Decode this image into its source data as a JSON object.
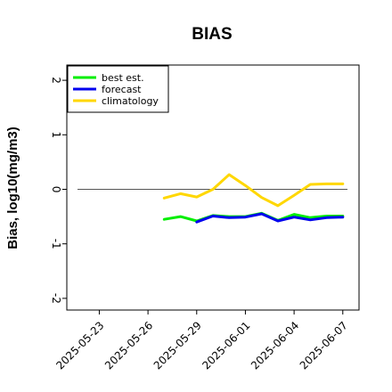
{
  "chart_data": {
    "type": "line",
    "title": "BIAS",
    "xlabel": "",
    "ylabel": "Bias, log10(mg/m3)",
    "ylim": [
      -2.1,
      2.1
    ],
    "xlim": [
      "2025-05-21",
      "2025-06-08"
    ],
    "grid": false,
    "legend_position": "top-left",
    "reference_line": 0,
    "yticks": [
      -2,
      -1,
      0,
      1,
      2
    ],
    "ytick_labels": [
      "-2",
      "-1",
      "0",
      "1",
      "2"
    ],
    "xticks": [
      "2025-05-23",
      "2025-05-26",
      "2025-05-29",
      "2025-06-01",
      "2025-06-04",
      "2025-06-07"
    ],
    "highlighted_tick": "2025-05-29",
    "highlight_color": "#2e8b2e",
    "x": [
      "2025-05-27",
      "2025-05-28",
      "2025-05-29",
      "2025-05-30",
      "2025-05-31",
      "2025-06-01",
      "2025-06-02",
      "2025-06-03",
      "2025-06-04",
      "2025-06-05",
      "2025-06-06",
      "2025-06-07"
    ],
    "series": [
      {
        "name": "best est.",
        "color": "#00ee00",
        "values": [
          -0.55,
          -0.5,
          -0.58,
          -0.48,
          -0.5,
          -0.5,
          -0.44,
          -0.57,
          -0.46,
          -0.52,
          -0.49,
          -0.49
        ]
      },
      {
        "name": "forecast",
        "color": "#0000ee",
        "values": [
          null,
          null,
          -0.6,
          -0.49,
          -0.52,
          -0.51,
          -0.45,
          -0.58,
          -0.51,
          -0.56,
          -0.52,
          -0.51
        ]
      },
      {
        "name": "climatology",
        "color": "#ffd700",
        "values": [
          -0.16,
          -0.08,
          -0.14,
          0.0,
          0.27,
          0.07,
          -0.15,
          -0.3,
          -0.11,
          0.09,
          0.1,
          0.1
        ]
      }
    ]
  }
}
